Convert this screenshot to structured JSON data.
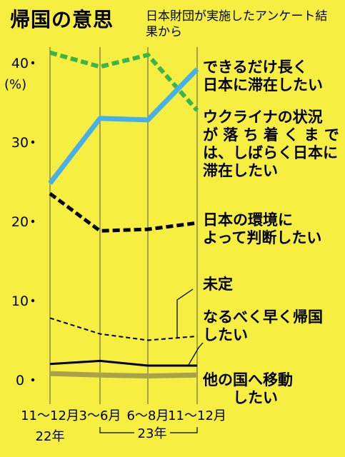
{
  "title": "帰国の意思",
  "source": "日本財団が実施したアンケート結果から",
  "unit": "(%)",
  "chart_data": {
    "type": "line",
    "title": "帰国の意思",
    "categories": [
      "11～12月",
      "3～6月",
      "6～8月",
      "11～12月"
    ],
    "year_labels": [
      "22年",
      "23年"
    ],
    "ylim": [
      0,
      42
    ],
    "yticks": [
      "0",
      "10",
      "20",
      "30",
      "40"
    ],
    "ylabel": "(%)",
    "series": [
      {
        "name": "できるだけ長く日本に滞在したい",
        "values": [
          41.3,
          39.5,
          41.0,
          34.0
        ],
        "color": "#39b54a",
        "style": "dashed",
        "width": 6
      },
      {
        "name": "ウクライナの状況が落ち着くまでは、しばらく日本に滞在したい",
        "values": [
          24.8,
          33.0,
          32.8,
          39.2
        ],
        "color": "#45b1e8",
        "style": "solid",
        "width": 7
      },
      {
        "name": "日本の環境によって判断したい",
        "values": [
          23.5,
          18.8,
          19.0,
          19.8
        ],
        "color": "#000000",
        "style": "dashed",
        "width": 5
      },
      {
        "name": "未定",
        "values": [
          2.0,
          2.4,
          1.8,
          1.8
        ],
        "color": "#000000",
        "style": "solid",
        "width": 3
      },
      {
        "name": "なるべく早く帰国したい",
        "values": [
          7.8,
          5.8,
          5.0,
          5.5
        ],
        "color": "#000000",
        "style": "dashed",
        "width": 2
      },
      {
        "name": "他の国へ移動したい",
        "values": [
          0.8,
          0.6,
          0.5,
          0.6
        ],
        "color": "#a8a24a",
        "style": "solid",
        "width": 7
      }
    ],
    "grid": "vertical",
    "legend": "right, inline labels"
  },
  "labels": {
    "s1": "できるだけ長く\n日本に滞在したい",
    "s2": "ウクライナの状況\nが 落 ち 着 く ま で\nは、しばらく日本に\n滞在したい",
    "s3": "日本の環境に\nよって判断したい",
    "s4": "未定",
    "s5": "なるべく早く帰国\nしたい",
    "s6": "他の国へ移動\n　　したい"
  }
}
